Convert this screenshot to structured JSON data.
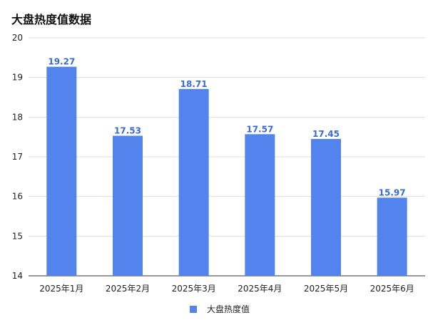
{
  "chart_data": {
    "type": "bar",
    "title": "大盘热度值数据",
    "categories": [
      "2025年1月",
      "2025年2月",
      "2025年3月",
      "2025年4月",
      "2025年5月",
      "2025年6月"
    ],
    "series": [
      {
        "name": "大盘热度值",
        "values": [
          19.27,
          17.53,
          18.71,
          17.57,
          17.45,
          15.97
        ],
        "color": "#5384ee"
      }
    ],
    "xlabel": "",
    "ylabel": "",
    "ylim": [
      14,
      20
    ],
    "yticks": [
      14,
      15,
      16,
      17,
      18,
      19,
      20
    ],
    "grid": true,
    "legend": "bottom"
  }
}
